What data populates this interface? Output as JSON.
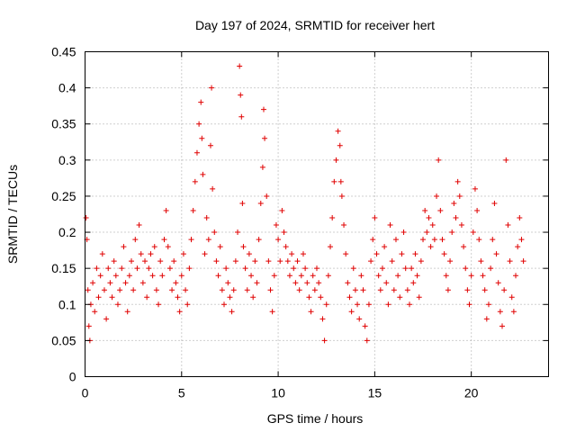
{
  "chart_data": {
    "type": "scatter",
    "title": "Day 197 of 2024, SRMTID for receiver hert",
    "xlabel": "GPS time / hours",
    "ylabel": "SRMTID / TECUs",
    "xlim": [
      0,
      24
    ],
    "ylim": [
      0,
      0.45
    ],
    "xticks": [
      0,
      5,
      10,
      15,
      20
    ],
    "xtick_labels": [
      "0",
      "5",
      "10",
      "15",
      "20"
    ],
    "yticks": [
      0,
      0.05,
      0.1,
      0.15,
      0.2,
      0.25,
      0.3,
      0.35,
      0.4,
      0.45
    ],
    "ytick_labels": [
      "0",
      "0.05",
      "0.1",
      "0.15",
      "0.2",
      "0.25",
      "0.3",
      "0.35",
      "0.4",
      "0.45"
    ],
    "grid": true,
    "marker": "+",
    "color": "#e00000",
    "series": [
      {
        "name": "SRMTID",
        "x": [
          0.05,
          0.1,
          0.15,
          0.2,
          0.25,
          0.3,
          0.4,
          0.5,
          0.6,
          0.7,
          0.8,
          0.9,
          1.0,
          1.1,
          1.2,
          1.3,
          1.4,
          1.5,
          1.6,
          1.7,
          1.8,
          1.9,
          2.0,
          2.1,
          2.2,
          2.3,
          2.4,
          2.5,
          2.6,
          2.7,
          2.8,
          2.9,
          3.0,
          3.1,
          3.2,
          3.3,
          3.4,
          3.5,
          3.6,
          3.7,
          3.8,
          3.9,
          4.0,
          4.1,
          4.2,
          4.3,
          4.4,
          4.5,
          4.6,
          4.7,
          4.8,
          4.9,
          5.0,
          5.1,
          5.2,
          5.3,
          5.4,
          5.5,
          5.6,
          5.7,
          5.8,
          5.9,
          6.0,
          6.05,
          6.1,
          6.2,
          6.3,
          6.4,
          6.5,
          6.55,
          6.6,
          6.7,
          6.8,
          6.9,
          7.0,
          7.1,
          7.2,
          7.3,
          7.4,
          7.5,
          7.6,
          7.7,
          7.8,
          7.9,
          8.0,
          8.05,
          8.1,
          8.15,
          8.2,
          8.3,
          8.4,
          8.5,
          8.6,
          8.7,
          8.8,
          8.9,
          9.0,
          9.1,
          9.2,
          9.25,
          9.3,
          9.4,
          9.5,
          9.6,
          9.7,
          9.8,
          9.9,
          10.0,
          10.1,
          10.2,
          10.3,
          10.4,
          10.5,
          10.6,
          10.7,
          10.8,
          10.9,
          11.0,
          11.1,
          11.2,
          11.3,
          11.4,
          11.5,
          11.6,
          11.7,
          11.8,
          11.9,
          12.0,
          12.1,
          12.2,
          12.3,
          12.4,
          12.5,
          12.6,
          12.7,
          12.8,
          12.9,
          13.0,
          13.1,
          13.2,
          13.25,
          13.3,
          13.4,
          13.5,
          13.6,
          13.7,
          13.8,
          13.9,
          14.0,
          14.1,
          14.2,
          14.3,
          14.4,
          14.5,
          14.6,
          14.7,
          14.8,
          14.9,
          15.0,
          15.1,
          15.2,
          15.3,
          15.4,
          15.5,
          15.6,
          15.7,
          15.8,
          15.9,
          16.0,
          16.1,
          16.2,
          16.3,
          16.4,
          16.5,
          16.6,
          16.7,
          16.8,
          16.9,
          17.0,
          17.1,
          17.2,
          17.3,
          17.4,
          17.5,
          17.6,
          17.7,
          17.8,
          17.9,
          18.0,
          18.1,
          18.2,
          18.3,
          18.4,
          18.5,
          18.6,
          18.7,
          18.8,
          18.9,
          19.0,
          19.1,
          19.2,
          19.3,
          19.4,
          19.5,
          19.6,
          19.7,
          19.8,
          19.9,
          20.0,
          20.1,
          20.2,
          20.3,
          20.4,
          20.5,
          20.6,
          20.7,
          20.8,
          20.9,
          21.0,
          21.1,
          21.2,
          21.3,
          21.4,
          21.5,
          21.6,
          21.7,
          21.8,
          21.9,
          22.0,
          22.1,
          22.2,
          22.3,
          22.4,
          22.5,
          22.6,
          22.7
        ],
        "y": [
          0.22,
          0.19,
          0.12,
          0.07,
          0.05,
          0.1,
          0.13,
          0.09,
          0.15,
          0.11,
          0.14,
          0.17,
          0.12,
          0.08,
          0.15,
          0.13,
          0.11,
          0.16,
          0.14,
          0.1,
          0.12,
          0.15,
          0.18,
          0.13,
          0.09,
          0.14,
          0.16,
          0.12,
          0.19,
          0.15,
          0.21,
          0.17,
          0.13,
          0.16,
          0.11,
          0.15,
          0.17,
          0.14,
          0.18,
          0.12,
          0.1,
          0.16,
          0.14,
          0.19,
          0.23,
          0.18,
          0.15,
          0.12,
          0.16,
          0.13,
          0.11,
          0.09,
          0.14,
          0.17,
          0.12,
          0.1,
          0.15,
          0.19,
          0.23,
          0.27,
          0.31,
          0.35,
          0.38,
          0.33,
          0.28,
          0.17,
          0.22,
          0.19,
          0.32,
          0.4,
          0.26,
          0.2,
          0.16,
          0.14,
          0.18,
          0.12,
          0.1,
          0.15,
          0.13,
          0.11,
          0.09,
          0.12,
          0.16,
          0.2,
          0.43,
          0.39,
          0.36,
          0.24,
          0.18,
          0.15,
          0.12,
          0.17,
          0.14,
          0.11,
          0.16,
          0.13,
          0.19,
          0.24,
          0.29,
          0.37,
          0.33,
          0.25,
          0.16,
          0.12,
          0.09,
          0.14,
          0.21,
          0.19,
          0.16,
          0.23,
          0.2,
          0.18,
          0.16,
          0.14,
          0.17,
          0.15,
          0.13,
          0.16,
          0.12,
          0.14,
          0.17,
          0.15,
          0.13,
          0.11,
          0.09,
          0.14,
          0.12,
          0.15,
          0.13,
          0.11,
          0.08,
          0.05,
          0.1,
          0.14,
          0.18,
          0.22,
          0.27,
          0.3,
          0.34,
          0.32,
          0.27,
          0.25,
          0.21,
          0.17,
          0.13,
          0.11,
          0.09,
          0.15,
          0.12,
          0.1,
          0.08,
          0.14,
          0.12,
          0.07,
          0.05,
          0.1,
          0.16,
          0.19,
          0.22,
          0.17,
          0.14,
          0.12,
          0.15,
          0.18,
          0.13,
          0.1,
          0.21,
          0.16,
          0.12,
          0.19,
          0.14,
          0.11,
          0.17,
          0.2,
          0.15,
          0.12,
          0.1,
          0.15,
          0.13,
          0.17,
          0.14,
          0.11,
          0.16,
          0.19,
          0.23,
          0.2,
          0.22,
          0.18,
          0.21,
          0.19,
          0.25,
          0.3,
          0.23,
          0.19,
          0.17,
          0.14,
          0.12,
          0.16,
          0.2,
          0.24,
          0.22,
          0.27,
          0.25,
          0.21,
          0.18,
          0.15,
          0.12,
          0.1,
          0.14,
          0.2,
          0.26,
          0.23,
          0.19,
          0.16,
          0.14,
          0.12,
          0.08,
          0.1,
          0.15,
          0.19,
          0.24,
          0.17,
          0.13,
          0.09,
          0.07,
          0.12,
          0.3,
          0.21,
          0.16,
          0.11,
          0.09,
          0.14,
          0.18,
          0.22,
          0.19,
          0.16
        ]
      }
    ]
  }
}
